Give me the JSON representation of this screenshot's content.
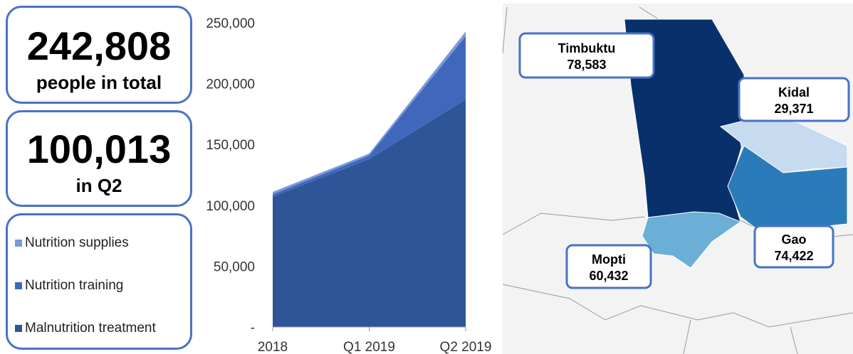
{
  "stats": [
    {
      "value": "242,808",
      "label": "people in total"
    },
    {
      "value": "100,013",
      "label": "in Q2"
    }
  ],
  "chart_data": {
    "type": "area",
    "stacked": true,
    "categories": [
      "2018",
      "Q1 2019",
      "Q2 2019"
    ],
    "series": [
      {
        "name": "Nutrition supplies",
        "color": "#7b98d8",
        "values": [
          2000,
          1500,
          3800
        ]
      },
      {
        "name": "Nutrition training",
        "color": "#3f68bd",
        "values": [
          2000,
          3000,
          52000
        ]
      },
      {
        "name": "Malnutrition treatment",
        "color": "#2e5597",
        "values": [
          107000,
          138000,
          187000
        ]
      }
    ],
    "ylim": [
      0,
      250000
    ],
    "yticks": [
      {
        "value": 0,
        "label": "-"
      },
      {
        "value": 50000,
        "label": "50,000"
      },
      {
        "value": 100000,
        "label": "100,000"
      },
      {
        "value": 150000,
        "label": "150,000"
      },
      {
        "value": 200000,
        "label": "200,000"
      },
      {
        "value": 250000,
        "label": "250,000"
      }
    ]
  },
  "map": {
    "regions": [
      {
        "name": "Timbuktu",
        "value": "78,583",
        "color": "#08306b"
      },
      {
        "name": "Kidal",
        "value": "29,371",
        "color": "#c6dbef"
      },
      {
        "name": "Gao",
        "value": "74,422",
        "color": "#2b7bba"
      },
      {
        "name": "Mopti",
        "value": "60,432",
        "color": "#6baed6"
      }
    ]
  }
}
